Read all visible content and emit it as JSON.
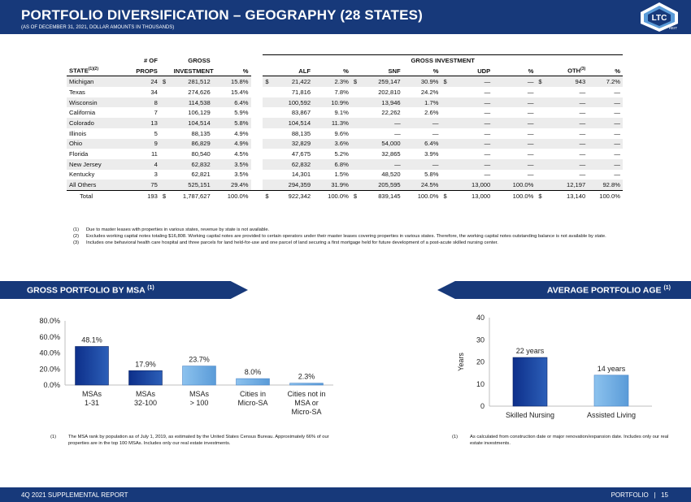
{
  "header": {
    "title": "PORTFOLIO DIVERSIFICATION – GEOGRAPHY (28 STATES)",
    "subtitle": "(AS OF DECEMBER 31, 2021, DOLLAR AMOUNTS IN THOUSANDS)",
    "logo_text": "LTC",
    "logo_sub": "REIT"
  },
  "table": {
    "group_header": "GROSS INVESTMENT",
    "col_top": {
      "props": "# OF",
      "investment": "GROSS"
    },
    "columns": {
      "state": "STATE",
      "state_sup": "(1)(2)",
      "props": "PROPS",
      "investment": "INVESTMENT",
      "pct": "%",
      "alf": "ALF",
      "alf_pct": "%",
      "snf": "SNF",
      "snf_pct": "%",
      "udp": "UDP",
      "udp_pct": "%",
      "oth": "OTH",
      "oth_sup": "(3)",
      "oth_pct": "%"
    },
    "rows": [
      [
        "Michigan",
        "24",
        "$",
        "281,512",
        "15.8%",
        "$",
        "21,422",
        "2.3%",
        "$",
        "259,147",
        "30.9%",
        "$",
        "—",
        "—",
        "$",
        "943",
        "7.2%"
      ],
      [
        "Texas",
        "34",
        "",
        "274,626",
        "15.4%",
        "",
        "71,816",
        "7.8%",
        "",
        "202,810",
        "24.2%",
        "",
        "—",
        "—",
        "",
        "—",
        "—"
      ],
      [
        "Wisconsin",
        "8",
        "",
        "114,538",
        "6.4%",
        "",
        "100,592",
        "10.9%",
        "",
        "13,946",
        "1.7%",
        "",
        "—",
        "—",
        "",
        "—",
        "—"
      ],
      [
        "California",
        "7",
        "",
        "106,129",
        "5.9%",
        "",
        "83,867",
        "9.1%",
        "",
        "22,262",
        "2.6%",
        "",
        "—",
        "—",
        "",
        "—",
        "—"
      ],
      [
        "Colorado",
        "13",
        "",
        "104,514",
        "5.8%",
        "",
        "104,514",
        "11.3%",
        "",
        "—",
        "—",
        "",
        "—",
        "—",
        "",
        "—",
        "—"
      ],
      [
        "Illinois",
        "5",
        "",
        "88,135",
        "4.9%",
        "",
        "88,135",
        "9.6%",
        "",
        "—",
        "—",
        "",
        "—",
        "—",
        "",
        "—",
        "—"
      ],
      [
        "Ohio",
        "9",
        "",
        "86,829",
        "4.9%",
        "",
        "32,829",
        "3.6%",
        "",
        "54,000",
        "6.4%",
        "",
        "—",
        "—",
        "",
        "—",
        "—"
      ],
      [
        "Florida",
        "11",
        "",
        "80,540",
        "4.5%",
        "",
        "47,675",
        "5.2%",
        "",
        "32,865",
        "3.9%",
        "",
        "—",
        "—",
        "",
        "—",
        "—"
      ],
      [
        "New Jersey",
        "4",
        "",
        "62,832",
        "3.5%",
        "",
        "62,832",
        "6.8%",
        "",
        "—",
        "—",
        "",
        "—",
        "—",
        "",
        "—",
        "—"
      ],
      [
        "Kentucky",
        "3",
        "",
        "62,821",
        "3.5%",
        "",
        "14,301",
        "1.5%",
        "",
        "48,520",
        "5.8%",
        "",
        "—",
        "—",
        "",
        "—",
        "—"
      ],
      [
        "All Others",
        "75",
        "",
        "525,151",
        "29.4%",
        "",
        "294,359",
        "31.9%",
        "",
        "205,595",
        "24.5%",
        "",
        "13,000",
        "100.0%",
        "",
        "12,197",
        "92.8%"
      ]
    ],
    "total": [
      "Total",
      "193",
      "$",
      "1,787,627",
      "100.0%",
      "$",
      "922,342",
      "100.0%",
      "$",
      "839,145",
      "100.0%",
      "$",
      "13,000",
      "100.0%",
      "$",
      "13,140",
      "100.0%"
    ]
  },
  "notes": [
    {
      "num": "(1)",
      "text": "Due to master leases with properties in various states, revenue by state is not available."
    },
    {
      "num": "(2)",
      "text": "Excludes working capital notes totaling $16,808. Working capital notes are provided to certain operators under their master leases covering properties in various states. Therefore, the working capital notes outstanding balance is not available by state."
    },
    {
      "num": "(3)",
      "text": "Includes one behavioral health care hospital and three parcels for land held-for-use and one parcel of land securing a first mortgage held for future development of a post-acute skilled nursing center."
    }
  ],
  "left_section": {
    "title": "GROSS PORTFOLIO BY MSA",
    "title_sup": "(1)",
    "note_num": "(1)",
    "note_text": "The MSA rank by population as of July 1, 2019, as estimated by the United States Census Bureau. Approximately 66% of our properties are in the top 100 MSAs. Includes only our real estate investments."
  },
  "right_section": {
    "title": "AVERAGE PORTFOLIO AGE",
    "title_sup": "(1)",
    "note_num": "(1)",
    "note_text": "As calculated from construction date or major renovation/expansion date. Includes only our real estate investments."
  },
  "footer": {
    "left": "4Q 2021 SUPPLEMENTAL REPORT",
    "right": "PORTFOLIO   |   15"
  },
  "colors": {
    "navy": "#17397a",
    "bar_dark": "#0d2f8a",
    "bar_light": "#5a9bd8"
  },
  "chart_data": [
    {
      "type": "bar",
      "categories": [
        [
          "MSAs",
          "1-31"
        ],
        [
          "MSAs",
          "32-100"
        ],
        [
          "MSAs",
          "> 100"
        ],
        [
          "Cities in",
          "Micro-SA"
        ],
        [
          "Cities not in",
          "MSA or",
          "Micro-SA"
        ]
      ],
      "values": [
        48.1,
        17.9,
        23.7,
        8.0,
        2.3
      ],
      "value_labels": [
        "48.1%",
        "17.9%",
        "23.7%",
        "8.0%",
        "2.3%"
      ],
      "yticks": [
        "0.0%",
        "20.0%",
        "40.0%",
        "60.0%",
        "80.0%"
      ],
      "ylim": [
        0,
        80
      ],
      "grid": false,
      "legend": "none"
    },
    {
      "type": "bar",
      "categories": [
        [
          "Skilled Nursing"
        ],
        [
          "Assisted Living"
        ]
      ],
      "values": [
        22,
        14
      ],
      "value_labels": [
        "22 years",
        "14 years"
      ],
      "yticks": [
        "0",
        "10",
        "20",
        "30",
        "40"
      ],
      "ylabel": "Years",
      "ylim": [
        0,
        40
      ],
      "grid": false,
      "legend": "none"
    }
  ]
}
